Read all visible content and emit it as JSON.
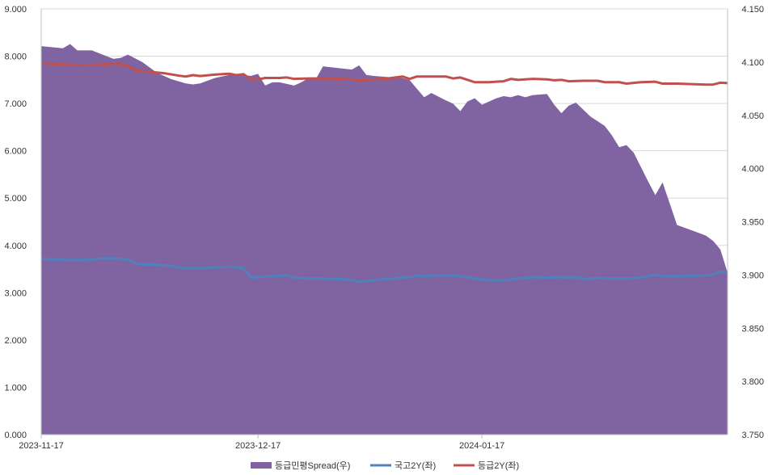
{
  "chart_data": {
    "type": "area",
    "x_ticks": [
      "2023-11-17",
      "2023-12-17",
      "2024-01-17"
    ],
    "x_tick_index": [
      0,
      30,
      61
    ],
    "y_left": {
      "ticks": [
        "0.000",
        "1.000",
        "2.000",
        "3.000",
        "4.000",
        "5.000",
        "6.000",
        "7.000",
        "8.000",
        "9.000"
      ],
      "min": 0,
      "max": 9
    },
    "y_right": {
      "ticks": [
        "3.750",
        "3.800",
        "3.850",
        "3.900",
        "3.950",
        "4.000",
        "4.050",
        "4.100",
        "4.150"
      ],
      "min": 3.75,
      "max": 4.15
    },
    "grid": "horizontal",
    "legend_position": "bottom",
    "series": [
      {
        "name": "등급민평Spread(우)",
        "axis": "right",
        "kind": "area",
        "color": "#8064A2",
        "points": [
          [
            0,
            4.115
          ],
          [
            3,
            4.113
          ],
          [
            4,
            4.117
          ],
          [
            5,
            4.111
          ],
          [
            7,
            4.111
          ],
          [
            10,
            4.103
          ],
          [
            11,
            4.104
          ],
          [
            12,
            4.107
          ],
          [
            14,
            4.1
          ],
          [
            16,
            4.09
          ],
          [
            18,
            4.084
          ],
          [
            19,
            4.082
          ],
          [
            20,
            4.08
          ],
          [
            21,
            4.079
          ],
          [
            22,
            4.08
          ],
          [
            24,
            4.085
          ],
          [
            26,
            4.088
          ],
          [
            28,
            4.088
          ],
          [
            29,
            4.087
          ],
          [
            30,
            4.089
          ],
          [
            31,
            4.078
          ],
          [
            32,
            4.081
          ],
          [
            33,
            4.081
          ],
          [
            35,
            4.078
          ],
          [
            36,
            4.081
          ],
          [
            37,
            4.085
          ],
          [
            38,
            4.084
          ],
          [
            39,
            4.096
          ],
          [
            43,
            4.093
          ],
          [
            44,
            4.097
          ],
          [
            45,
            4.088
          ],
          [
            46,
            4.087
          ],
          [
            48,
            4.086
          ],
          [
            50,
            4.085
          ],
          [
            51,
            4.083
          ],
          [
            53,
            4.067
          ],
          [
            54,
            4.071
          ],
          [
            56,
            4.064
          ],
          [
            57,
            4.061
          ],
          [
            58,
            4.054
          ],
          [
            59,
            4.063
          ],
          [
            60,
            4.066
          ],
          [
            61,
            4.06
          ],
          [
            63,
            4.066
          ],
          [
            64,
            4.068
          ],
          [
            65,
            4.067
          ],
          [
            66,
            4.069
          ],
          [
            67,
            4.067
          ],
          [
            68,
            4.069
          ],
          [
            70,
            4.07
          ],
          [
            71,
            4.06
          ],
          [
            72,
            4.052
          ],
          [
            73,
            4.059
          ],
          [
            74,
            4.062
          ],
          [
            76,
            4.049
          ],
          [
            78,
            4.04
          ],
          [
            79,
            4.031
          ],
          [
            80,
            4.02
          ],
          [
            81,
            4.022
          ],
          [
            82,
            4.015
          ],
          [
            84,
            3.988
          ],
          [
            85,
            3.975
          ],
          [
            86,
            3.987
          ],
          [
            87,
            3.967
          ],
          [
            88,
            3.947
          ],
          [
            90,
            3.942
          ],
          [
            92,
            3.937
          ],
          [
            93,
            3.932
          ],
          [
            94,
            3.924
          ],
          [
            95,
            3.902
          ]
        ]
      },
      {
        "name": "국고2Y(좌)",
        "axis": "left",
        "kind": "line",
        "color": "#4F81BD",
        "points": [
          [
            0,
            3.72
          ],
          [
            2,
            3.7
          ],
          [
            4,
            3.69
          ],
          [
            6,
            3.69
          ],
          [
            7,
            3.7
          ],
          [
            8,
            3.72
          ],
          [
            10,
            3.73
          ],
          [
            12,
            3.7
          ],
          [
            13,
            3.62
          ],
          [
            14,
            3.59
          ],
          [
            15,
            3.6
          ],
          [
            17,
            3.58
          ],
          [
            18,
            3.57
          ],
          [
            19,
            3.53
          ],
          [
            20,
            3.52
          ],
          [
            22,
            3.52
          ],
          [
            24,
            3.53
          ],
          [
            26,
            3.55
          ],
          [
            27,
            3.53
          ],
          [
            28,
            3.52
          ],
          [
            29,
            3.32
          ],
          [
            30,
            3.33
          ],
          [
            32,
            3.35
          ],
          [
            34,
            3.37
          ],
          [
            35,
            3.32
          ],
          [
            37,
            3.3
          ],
          [
            39,
            3.3
          ],
          [
            41,
            3.29
          ],
          [
            43,
            3.27
          ],
          [
            44,
            3.23
          ],
          [
            45,
            3.24
          ],
          [
            47,
            3.28
          ],
          [
            49,
            3.3
          ],
          [
            50,
            3.32
          ],
          [
            51,
            3.33
          ],
          [
            52,
            3.36
          ],
          [
            53,
            3.35
          ],
          [
            55,
            3.37
          ],
          [
            57,
            3.36
          ],
          [
            59,
            3.33
          ],
          [
            60,
            3.3
          ],
          [
            62,
            3.26
          ],
          [
            64,
            3.26
          ],
          [
            66,
            3.3
          ],
          [
            68,
            3.33
          ],
          [
            70,
            3.32
          ],
          [
            72,
            3.33
          ],
          [
            73,
            3.32
          ],
          [
            74,
            3.33
          ],
          [
            75,
            3.29
          ],
          [
            77,
            3.31
          ],
          [
            79,
            3.3
          ],
          [
            81,
            3.3
          ],
          [
            83,
            3.32
          ],
          [
            85,
            3.38
          ],
          [
            86,
            3.35
          ],
          [
            88,
            3.35
          ],
          [
            90,
            3.36
          ],
          [
            92,
            3.37
          ],
          [
            93,
            3.38
          ],
          [
            94,
            3.44
          ],
          [
            95,
            3.44
          ]
        ]
      },
      {
        "name": "등급2Y(좌)",
        "axis": "left",
        "kind": "line",
        "color": "#C0504D",
        "points": [
          [
            0,
            7.85
          ],
          [
            2,
            7.83
          ],
          [
            4,
            7.82
          ],
          [
            6,
            7.81
          ],
          [
            8,
            7.82
          ],
          [
            10,
            7.84
          ],
          [
            11,
            7.83
          ],
          [
            12,
            7.8
          ],
          [
            13,
            7.7
          ],
          [
            15,
            7.67
          ],
          [
            17,
            7.64
          ],
          [
            19,
            7.59
          ],
          [
            20,
            7.57
          ],
          [
            21,
            7.6
          ],
          [
            22,
            7.58
          ],
          [
            24,
            7.61
          ],
          [
            26,
            7.63
          ],
          [
            27,
            7.6
          ],
          [
            28,
            7.62
          ],
          [
            29,
            7.51
          ],
          [
            30,
            7.51
          ],
          [
            31,
            7.54
          ],
          [
            33,
            7.54
          ],
          [
            34,
            7.55
          ],
          [
            35,
            7.52
          ],
          [
            37,
            7.53
          ],
          [
            39,
            7.53
          ],
          [
            41,
            7.52
          ],
          [
            43,
            7.51
          ],
          [
            44,
            7.49
          ],
          [
            45,
            7.49
          ],
          [
            47,
            7.52
          ],
          [
            48,
            7.53
          ],
          [
            49,
            7.55
          ],
          [
            50,
            7.57
          ],
          [
            51,
            7.52
          ],
          [
            52,
            7.57
          ],
          [
            54,
            7.57
          ],
          [
            56,
            7.57
          ],
          [
            57,
            7.53
          ],
          [
            58,
            7.55
          ],
          [
            59,
            7.5
          ],
          [
            60,
            7.45
          ],
          [
            62,
            7.45
          ],
          [
            63,
            7.46
          ],
          [
            64,
            7.47
          ],
          [
            65,
            7.52
          ],
          [
            66,
            7.5
          ],
          [
            68,
            7.52
          ],
          [
            70,
            7.51
          ],
          [
            71,
            7.49
          ],
          [
            72,
            7.5
          ],
          [
            73,
            7.47
          ],
          [
            75,
            7.48
          ],
          [
            77,
            7.48
          ],
          [
            78,
            7.45
          ],
          [
            80,
            7.45
          ],
          [
            81,
            7.42
          ],
          [
            83,
            7.45
          ],
          [
            85,
            7.46
          ],
          [
            86,
            7.42
          ],
          [
            88,
            7.42
          ],
          [
            90,
            7.41
          ],
          [
            92,
            7.4
          ],
          [
            93,
            7.4
          ],
          [
            94,
            7.44
          ],
          [
            95,
            7.43
          ]
        ]
      }
    ]
  },
  "legend": [
    {
      "label": "등급민평Spread(우)",
      "color": "#8064A2",
      "shape": "rect"
    },
    {
      "label": "국고2Y(좌)",
      "color": "#4F81BD",
      "shape": "line"
    },
    {
      "label": "등급2Y(좌)",
      "color": "#C0504D",
      "shape": "line"
    }
  ]
}
